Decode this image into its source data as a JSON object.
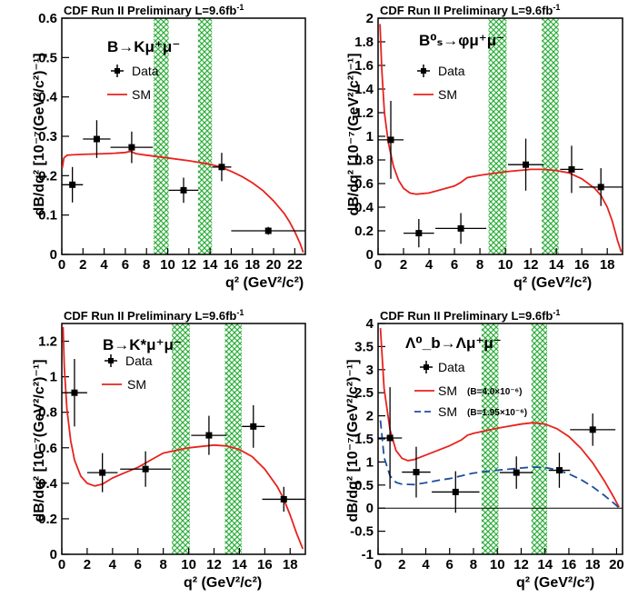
{
  "figure": {
    "banner": "CDF Run II Preliminary L=9.6fb",
    "banner_sup": "-1",
    "xlabel": "q² (GeV²/c²)",
    "ylabel": "dB/dq² [10⁻⁷(GeV²/c²)⁻¹]"
  },
  "colors": {
    "sm": "#e8221e",
    "sm_alt": "#1f4e9e",
    "veto_hatch": "#2fae3c",
    "data": "#000000",
    "axes": "#000000"
  },
  "chart_data": [
    {
      "type": "scatter",
      "process": "B→Kμ⁺μ⁻",
      "xlim": [
        0,
        23
      ],
      "ylim": [
        0,
        0.6
      ],
      "xticks": [
        "0",
        "2",
        "4",
        "6",
        "8",
        "10",
        "12",
        "14",
        "16",
        "18",
        "20",
        "22"
      ],
      "yticks": [
        "0",
        "0.1",
        "0.2",
        "0.3",
        "0.4",
        "0.5",
        "0.6"
      ],
      "veto_bands": [
        [
          8.68,
          10.09
        ],
        [
          12.86,
          14.18
        ]
      ],
      "legend": [
        "Data",
        "SM"
      ],
      "series": [
        {
          "name": "Data",
          "points": [
            {
              "x": 1.0,
              "y": 0.177,
              "xerr": 1.0,
              "yerr": 0.045
            },
            {
              "x": 3.3,
              "y": 0.293,
              "xerr": 1.3,
              "yerr": 0.048
            },
            {
              "x": 6.6,
              "y": 0.272,
              "xerr": 2.0,
              "yerr": 0.04
            },
            {
              "x": 11.5,
              "y": 0.163,
              "xerr": 1.4,
              "yerr": 0.032
            },
            {
              "x": 15.1,
              "y": 0.222,
              "xerr": 0.9,
              "yerr": 0.036
            },
            {
              "x": 19.5,
              "y": 0.06,
              "xerr": 3.5,
              "yerr": 0.01
            }
          ]
        },
        {
          "name": "SM",
          "curve": [
            [
              0.05,
              0.22
            ],
            [
              0.2,
              0.245
            ],
            [
              0.5,
              0.252
            ],
            [
              1,
              0.253
            ],
            [
              2,
              0.254
            ],
            [
              3,
              0.255
            ],
            [
              4,
              0.256
            ],
            [
              5,
              0.257
            ],
            [
              6,
              0.259
            ],
            [
              6.5,
              0.262
            ],
            [
              7,
              0.256
            ],
            [
              8,
              0.252
            ],
            [
              10,
              0.245
            ],
            [
              12,
              0.238
            ],
            [
              14,
              0.229
            ],
            [
              15,
              0.222
            ],
            [
              16,
              0.211
            ],
            [
              17,
              0.198
            ],
            [
              18,
              0.182
            ],
            [
              19,
              0.162
            ],
            [
              20,
              0.136
            ],
            [
              21,
              0.104
            ],
            [
              21.5,
              0.083
            ],
            [
              22,
              0.058
            ],
            [
              22.5,
              0.028
            ],
            [
              22.8,
              0.005
            ]
          ]
        }
      ]
    },
    {
      "type": "scatter",
      "process": "B⁰ₛ→φμ⁺μ⁻",
      "xlim": [
        0,
        19.2
      ],
      "ylim": [
        0,
        2.0
      ],
      "xticks": [
        "0",
        "2",
        "4",
        "6",
        "8",
        "10",
        "12",
        "14",
        "16",
        "18"
      ],
      "yticks": [
        "0",
        "0.2",
        "0.4",
        "0.6",
        "0.8",
        "1",
        "1.2",
        "1.4",
        "1.6",
        "1.8",
        "2"
      ],
      "veto_bands": [
        [
          8.68,
          10.09
        ],
        [
          12.86,
          14.18
        ]
      ],
      "legend": [
        "Data",
        "SM"
      ],
      "series": [
        {
          "name": "Data",
          "points": [
            {
              "x": 1.0,
              "y": 0.97,
              "xerr": 1.0,
              "yerr": 0.33
            },
            {
              "x": 3.2,
              "y": 0.18,
              "xerr": 1.2,
              "yerr": 0.12
            },
            {
              "x": 6.5,
              "y": 0.22,
              "xerr": 2.0,
              "yerr": 0.13
            },
            {
              "x": 11.6,
              "y": 0.76,
              "xerr": 1.4,
              "yerr": 0.22
            },
            {
              "x": 15.2,
              "y": 0.72,
              "xerr": 0.9,
              "yerr": 0.2
            },
            {
              "x": 17.5,
              "y": 0.57,
              "xerr": 1.7,
              "yerr": 0.16
            }
          ]
        },
        {
          "name": "SM",
          "curve": [
            [
              0.15,
              1.95
            ],
            [
              0.3,
              1.55
            ],
            [
              0.5,
              1.2
            ],
            [
              0.8,
              0.95
            ],
            [
              1.2,
              0.75
            ],
            [
              1.6,
              0.63
            ],
            [
              2,
              0.56
            ],
            [
              2.5,
              0.52
            ],
            [
              3,
              0.51
            ],
            [
              4,
              0.52
            ],
            [
              5,
              0.55
            ],
            [
              6,
              0.58
            ],
            [
              6.5,
              0.61
            ],
            [
              7,
              0.65
            ],
            [
              8,
              0.67
            ],
            [
              10,
              0.7
            ],
            [
              12,
              0.72
            ],
            [
              13,
              0.72
            ],
            [
              14,
              0.71
            ],
            [
              15,
              0.69
            ],
            [
              16,
              0.64
            ],
            [
              17,
              0.56
            ],
            [
              17.5,
              0.5
            ],
            [
              18,
              0.4
            ],
            [
              18.4,
              0.28
            ],
            [
              18.8,
              0.12
            ],
            [
              19.1,
              0.02
            ]
          ]
        }
      ]
    },
    {
      "type": "scatter",
      "process": "B→K*μ⁺μ⁻",
      "xlim": [
        0,
        19.2
      ],
      "ylim": [
        0,
        1.3
      ],
      "xticks": [
        "0",
        "2",
        "4",
        "6",
        "8",
        "10",
        "12",
        "14",
        "16",
        "18"
      ],
      "yticks": [
        "0",
        "0.2",
        "0.4",
        "0.6",
        "0.8",
        "1",
        "1.2"
      ],
      "veto_bands": [
        [
          8.68,
          10.09
        ],
        [
          12.86,
          14.18
        ]
      ],
      "legend": [
        "Data",
        "SM"
      ],
      "series": [
        {
          "name": "Data",
          "points": [
            {
              "x": 1.0,
              "y": 0.91,
              "xerr": 1.0,
              "yerr": 0.19
            },
            {
              "x": 3.2,
              "y": 0.46,
              "xerr": 1.2,
              "yerr": 0.11
            },
            {
              "x": 6.6,
              "y": 0.48,
              "xerr": 2.0,
              "yerr": 0.1
            },
            {
              "x": 11.6,
              "y": 0.67,
              "xerr": 1.4,
              "yerr": 0.11
            },
            {
              "x": 15.1,
              "y": 0.72,
              "xerr": 0.9,
              "yerr": 0.12
            },
            {
              "x": 17.5,
              "y": 0.31,
              "xerr": 1.7,
              "yerr": 0.07
            }
          ]
        },
        {
          "name": "SM",
          "curve": [
            [
              0.1,
              1.28
            ],
            [
              0.2,
              1.05
            ],
            [
              0.4,
              0.82
            ],
            [
              0.7,
              0.64
            ],
            [
              1,
              0.53
            ],
            [
              1.5,
              0.44
            ],
            [
              2,
              0.4
            ],
            [
              2.6,
              0.385
            ],
            [
              3.2,
              0.395
            ],
            [
              4,
              0.43
            ],
            [
              5,
              0.46
            ],
            [
              6,
              0.49
            ],
            [
              7,
              0.53
            ],
            [
              7.5,
              0.55
            ],
            [
              8,
              0.57
            ],
            [
              10,
              0.6
            ],
            [
              12,
              0.615
            ],
            [
              13,
              0.61
            ],
            [
              14,
              0.59
            ],
            [
              15,
              0.55
            ],
            [
              16,
              0.48
            ],
            [
              17,
              0.38
            ],
            [
              17.5,
              0.31
            ],
            [
              18,
              0.22
            ],
            [
              18.5,
              0.12
            ],
            [
              19,
              0.03
            ]
          ]
        }
      ]
    },
    {
      "type": "scatter",
      "process": "Λ⁰_b→Λμ⁺μ⁻",
      "xlim": [
        0,
        20.5
      ],
      "ylim": [
        -1,
        4
      ],
      "xticks": [
        "0",
        "2",
        "4",
        "6",
        "8",
        "10",
        "12",
        "14",
        "16",
        "18",
        "20"
      ],
      "yticks": [
        "-1",
        "-0.5",
        "0",
        "0.5",
        "1",
        "1.5",
        "2",
        "2.5",
        "3",
        "3.5",
        "4"
      ],
      "veto_bands": [
        [
          8.68,
          10.09
        ],
        [
          12.86,
          14.18
        ]
      ],
      "legend": [
        "Data",
        "SM",
        "SM"
      ],
      "legend_notes": [
        "(B=4.0×10⁻⁶)",
        "(B=1.95×10⁻⁶)"
      ],
      "series": [
        {
          "name": "Data",
          "points": [
            {
              "x": 1.0,
              "y": 1.52,
              "xerr": 1.0,
              "yerr": 1.1
            },
            {
              "x": 3.2,
              "y": 0.78,
              "xerr": 1.2,
              "yerr": 0.55
            },
            {
              "x": 6.5,
              "y": 0.35,
              "xerr": 2.0,
              "yerr": 0.45
            },
            {
              "x": 11.6,
              "y": 0.77,
              "xerr": 1.4,
              "yerr": 0.35
            },
            {
              "x": 15.2,
              "y": 0.82,
              "xerr": 0.9,
              "yerr": 0.38
            },
            {
              "x": 18.0,
              "y": 1.7,
              "xerr": 1.9,
              "yerr": 0.35
            }
          ]
        },
        {
          "name": "SM",
          "label_note": "(B=4.0×10⁻⁶)",
          "curve": [
            [
              0.2,
              3.9
            ],
            [
              0.5,
              2.6
            ],
            [
              1,
              1.7
            ],
            [
              1.5,
              1.25
            ],
            [
              2,
              1.08
            ],
            [
              2.5,
              1.03
            ],
            [
              3,
              1.05
            ],
            [
              4,
              1.15
            ],
            [
              5,
              1.25
            ],
            [
              6,
              1.35
            ],
            [
              7,
              1.48
            ],
            [
              7.5,
              1.58
            ],
            [
              8,
              1.62
            ],
            [
              10,
              1.73
            ],
            [
              12,
              1.82
            ],
            [
              13,
              1.85
            ],
            [
              14,
              1.82
            ],
            [
              15,
              1.72
            ],
            [
              16,
              1.55
            ],
            [
              17,
              1.3
            ],
            [
              18,
              0.98
            ],
            [
              19,
              0.58
            ],
            [
              19.8,
              0.22
            ],
            [
              20.2,
              0.02
            ]
          ]
        },
        {
          "name": "SM",
          "label_note": "(B=1.95×10⁻⁶)",
          "style": "dashed",
          "curve": [
            [
              0.2,
              1.9
            ],
            [
              0.5,
              1.1
            ],
            [
              1,
              0.7
            ],
            [
              1.5,
              0.56
            ],
            [
              2,
              0.52
            ],
            [
              3,
              0.51
            ],
            [
              4,
              0.55
            ],
            [
              5,
              0.6
            ],
            [
              6,
              0.64
            ],
            [
              7,
              0.7
            ],
            [
              8,
              0.76
            ],
            [
              10,
              0.82
            ],
            [
              12,
              0.87
            ],
            [
              13,
              0.89
            ],
            [
              14,
              0.88
            ],
            [
              15,
              0.83
            ],
            [
              16,
              0.74
            ],
            [
              17,
              0.62
            ],
            [
              18,
              0.46
            ],
            [
              19,
              0.27
            ],
            [
              19.8,
              0.1
            ],
            [
              20.2,
              0.01
            ]
          ]
        }
      ]
    }
  ]
}
